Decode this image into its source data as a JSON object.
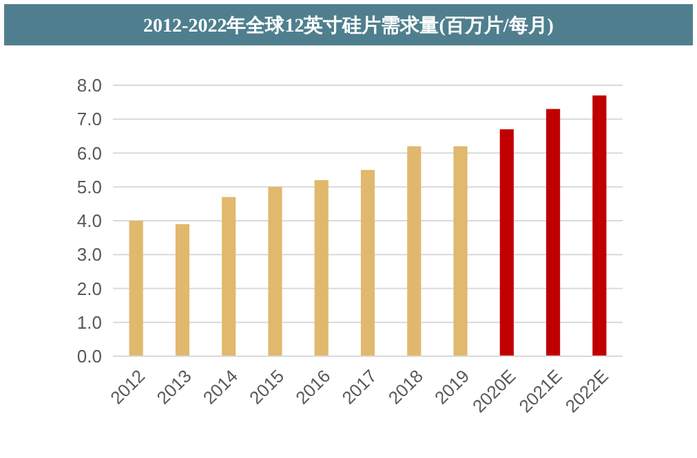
{
  "chart_data": {
    "type": "bar",
    "title": "2012-2022年全球12英寸硅片需求量(百万片/每月)",
    "categories": [
      "2012",
      "2013",
      "2014",
      "2015",
      "2016",
      "2017",
      "2018",
      "2019",
      "2020E",
      "2021E",
      "2022E"
    ],
    "values": [
      4.0,
      3.9,
      4.7,
      5.0,
      5.2,
      5.5,
      6.2,
      6.2,
      6.7,
      7.3,
      7.7
    ],
    "colors": [
      "#e0b96e",
      "#e0b96e",
      "#e0b96e",
      "#e0b96e",
      "#e0b96e",
      "#e0b96e",
      "#e0b96e",
      "#e0b96e",
      "#c00000",
      "#c00000",
      "#c00000"
    ],
    "ylim": [
      0,
      8
    ],
    "yticks": [
      {
        "value": 0,
        "label": "0.0"
      },
      {
        "value": 1,
        "label": "1.0"
      },
      {
        "value": 2,
        "label": "2.0"
      },
      {
        "value": 3,
        "label": "3.0"
      },
      {
        "value": 4,
        "label": "4.0"
      },
      {
        "value": 5,
        "label": "5.0"
      },
      {
        "value": 6,
        "label": "6.0"
      },
      {
        "value": 7,
        "label": "7.0"
      },
      {
        "value": 8,
        "label": "8.0"
      }
    ],
    "grid": "y"
  }
}
